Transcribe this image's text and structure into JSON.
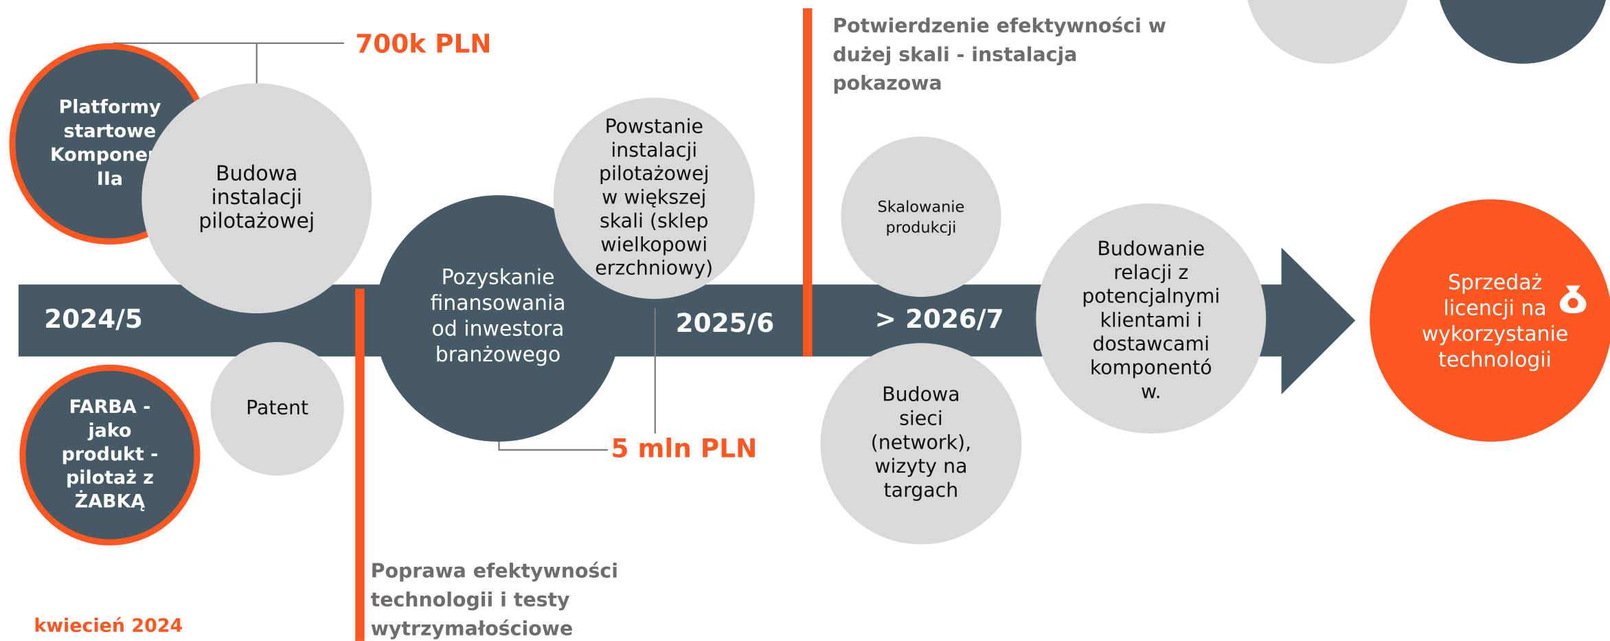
{
  "milestones": [
    "2024/5",
    "2025/6",
    "> 2026/7"
  ],
  "amounts": [
    "700k PLN",
    "5 mln PLN"
  ],
  "nodes": [
    {
      "lines": [
        "Platformy",
        "startowe",
        "Komponent",
        "IIa"
      ]
    },
    {
      "lines": [
        "Budowa",
        "instalacji",
        "pilotażowej"
      ]
    },
    {
      "lines": [
        "Patent"
      ]
    },
    {
      "lines": [
        "FARBA -",
        "jako",
        "produkt -",
        "pilotaż z",
        "ŻABKĄ"
      ]
    },
    {
      "lines": [
        "Pozyskanie",
        "finansowania",
        "od inwestora",
        "branżowego"
      ]
    },
    {
      "lines": [
        "Powstanie",
        "instalacji",
        "pilotażowej",
        "w większej",
        "skali (sklep",
        "wielkopowi",
        "erzchniowy)"
      ]
    },
    {
      "lines": [
        "Skalowanie",
        "produkcji"
      ]
    },
    {
      "lines": [
        "Budowa",
        "sieci",
        "(network),",
        "wizyty na",
        "targach"
      ]
    },
    {
      "lines": [
        "Budowanie",
        "relacji z",
        "potencjalnymi",
        "klientami i",
        "dostawcami",
        "komponentó",
        "w."
      ]
    },
    {
      "lines": [
        "Sprzedaż",
        "licencji na",
        "wykorzystanie",
        "technologii"
      ]
    }
  ],
  "notes": [
    {
      "lines": [
        "Potwierdzenie efektywności w",
        "dużej skali - instalacja",
        "pokazowa"
      ]
    },
    {
      "lines": [
        "Poprawa efektywności",
        "technologii i testy",
        "wytrzymałościowe"
      ]
    }
  ],
  "date_note": "kwiecień 2024"
}
